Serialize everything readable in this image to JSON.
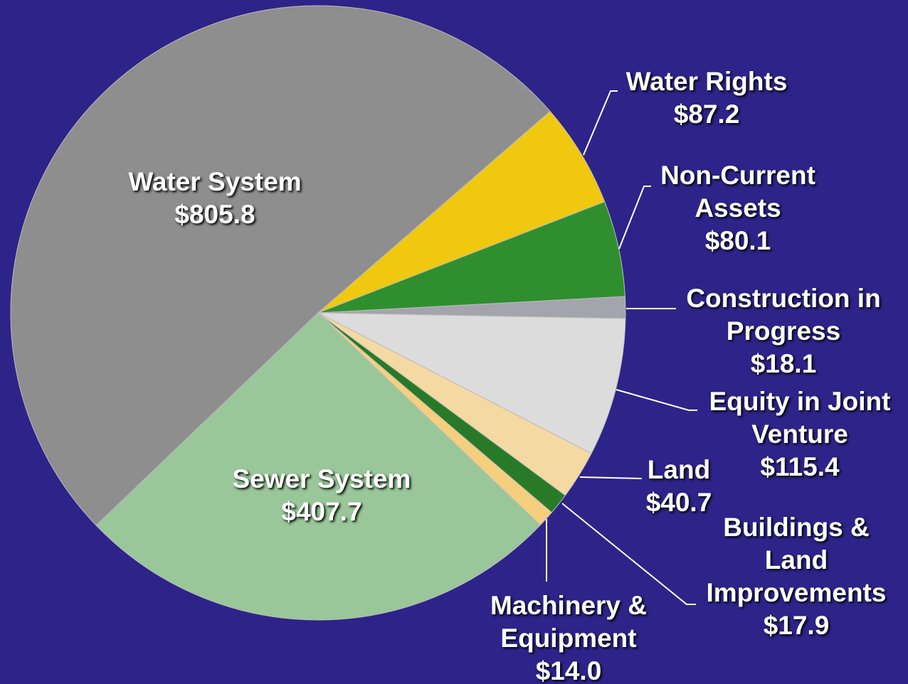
{
  "chart_data": {
    "type": "pie",
    "categories": [
      "Water System",
      "Water Rights",
      "Non-Current Assets",
      "Construction in Progress",
      "Equity in Joint Venture",
      "Land",
      "Buildings & Land Improvements",
      "Machinery & Equipment",
      "Sewer System"
    ],
    "values": [
      805.8,
      87.2,
      80.1,
      18.1,
      115.4,
      40.7,
      17.9,
      14.0,
      407.7
    ],
    "value_labels": [
      "$805.8",
      "$87.2",
      "$80.1",
      "$18.1",
      "$115.4",
      "$40.7",
      "$17.9",
      "$14.0",
      "$407.7"
    ],
    "colors": [
      "#8e8e8e",
      "#f0c810",
      "#2f8f2f",
      "#a4a4ac",
      "#dcdcdc",
      "#f5d9a2",
      "#287a28",
      "#f5cf7e",
      "#99c799"
    ]
  }
}
